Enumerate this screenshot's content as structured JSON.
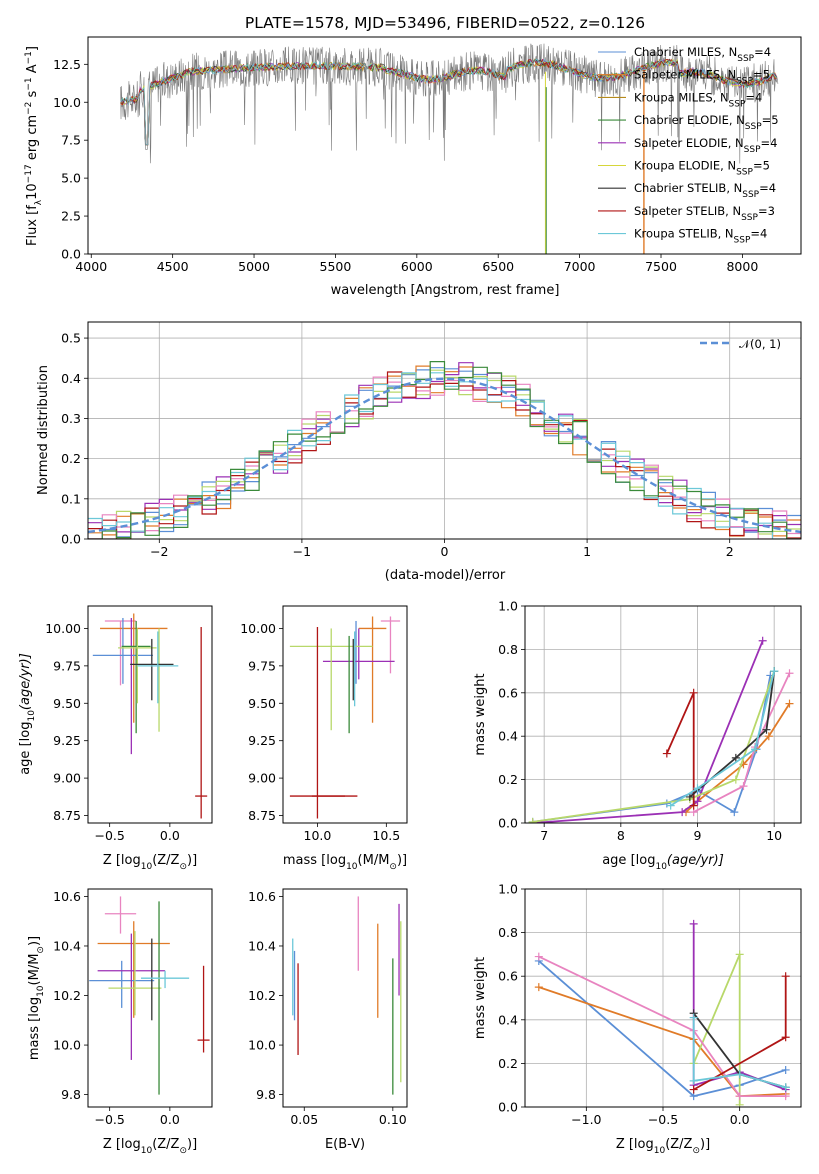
{
  "chart_data": [
    {
      "type": "line",
      "title": "PLATE=1578, MJD=53496, FIBERID=0522, z=0.126",
      "xlabel": "wavelength [Angstrom, rest frame]",
      "ylabel": "Flux [f",
      "ylabel_sub": "λ",
      "ylabel_mid": "10",
      "ylabel_sup": "−17",
      "ylabel_end": " erg cm",
      "ylabel_sup2": "−2",
      "ylabel_s": " s",
      "ylabel_sup3": "−1",
      "ylabel_A": " A",
      "ylabel_sup4": "−1",
      "ylabel_close": "]",
      "xlim": [
        3980,
        8360
      ],
      "ylim": [
        0,
        14.3
      ],
      "xticks": [
        4000,
        4500,
        5000,
        5500,
        6000,
        6500,
        7000,
        7500,
        8000
      ],
      "yticks": [
        0.0,
        2.5,
        5.0,
        7.5,
        10.0,
        12.5
      ],
      "ytick_labels": [
        "0.0",
        "2.5",
        "5.0",
        "7.5",
        "10.0",
        "12.5"
      ],
      "legend_position": "right",
      "series": [
        {
          "name": "Chabrier MILES, N",
          "sub": "SSP",
          "tail": "=4",
          "color": "#5b8fd6"
        },
        {
          "name": "Salpeter MILES, N",
          "sub": "SSP",
          "tail": "=5",
          "color": "#e07b28"
        },
        {
          "name": "Kroupa MILES, N",
          "sub": "SSP",
          "tail": "=4",
          "color": "#b58a1c"
        },
        {
          "name": "Chabrier ELODIE, N",
          "sub": "SSP",
          "tail": "=5",
          "color": "#3a8a3a"
        },
        {
          "name": "Salpeter ELODIE, N",
          "sub": "SSP",
          "tail": "=4",
          "color": "#9b30b5"
        },
        {
          "name": "Kroupa ELODIE, N",
          "sub": "SSP",
          "tail": "=5",
          "color": "#d6d63a"
        },
        {
          "name": "Chabrier STELIB, N",
          "sub": "SSP",
          "tail": "=4",
          "color": "#333333"
        },
        {
          "name": "Salpeter STELIB, N",
          "sub": "SSP",
          "tail": "=3",
          "color": "#b01515"
        },
        {
          "name": "Kroupa STELIB, N",
          "sub": "SSP",
          "tail": "=4",
          "color": "#6cc8d8"
        }
      ],
      "x_range_data": [
        4180,
        8220
      ]
    },
    {
      "type": "line",
      "xlabel": "(data-model)/error",
      "ylabel": "Normed distribution",
      "xlim": [
        -2.5,
        2.5
      ],
      "ylim": [
        0,
        0.54
      ],
      "xticks": [
        -2,
        -1,
        0,
        1,
        2
      ],
      "xtick_labels": [
        "−2",
        "−1",
        "0",
        "1",
        "2"
      ],
      "yticks": [
        0.0,
        0.1,
        0.2,
        0.3,
        0.4,
        0.5
      ],
      "ytick_labels": [
        "0.0",
        "0.1",
        "0.2",
        "0.3",
        "0.4",
        "0.5"
      ],
      "grid": true,
      "legend_position": "top-right",
      "legend": "𝒩(0, 1)",
      "gauss_color": "#5b8fd6",
      "bin_width": 0.1,
      "hist_colors": [
        "#5b8fd6",
        "#e07b28",
        "#9b30b5",
        "#b8d86a",
        "#e884c0",
        "#b01515",
        "#6cc8d8",
        "#3a8a3a"
      ]
    },
    {
      "type": "scatter",
      "xlabel": "Z [log",
      "xlabel_sub": "10",
      "xlabel_mid": "(Z/Z",
      "xlabel_sun_sub": "⊙",
      "xlabel_end": ")]",
      "ylabel": "age  [log",
      "ylabel_sub": "10",
      "ylabel_end": "(age/yr)]",
      "xlim": [
        -0.68,
        0.35
      ],
      "ylim": [
        8.7,
        10.15
      ],
      "xticks": [
        -0.5,
        0.0
      ],
      "xtick_labels": [
        "−0.5",
        "0.0"
      ],
      "yticks": [
        8.75,
        9.0,
        9.25,
        9.5,
        9.75,
        10.0
      ],
      "ytick_labels": [
        "8.75",
        "9.00",
        "9.25",
        "9.50",
        "9.75",
        "10.00"
      ],
      "points": [
        {
          "x": -0.41,
          "y": 10.05,
          "dx": 0.13,
          "dy": 0.0,
          "ylo": 9.62,
          "yhi": 10.05,
          "color": "#e884c0"
        },
        {
          "x": -0.3,
          "y": 10.0,
          "dx": 0.28,
          "dy": 0.0,
          "ylo": 9.37,
          "yhi": 10.1,
          "color": "#e07b28"
        },
        {
          "x": -0.39,
          "y": 9.82,
          "dx": 0.25,
          "dy": 0.0,
          "ylo": 9.63,
          "yhi": 10.07,
          "color": "#5b8fd6"
        },
        {
          "x": -0.32,
          "y": 9.79,
          "dx": 0.0,
          "dy": 0.0,
          "ylo": 9.16,
          "yhi": 10.07,
          "color": "#9b30b5"
        },
        {
          "x": -0.28,
          "y": 9.88,
          "dx": 0.12,
          "dy": 0.0,
          "ylo": 9.3,
          "yhi": 10.05,
          "color": "#3a8a3a"
        },
        {
          "x": -0.27,
          "y": 9.87,
          "dx": 0.16,
          "dy": 0.0,
          "ylo": 9.5,
          "yhi": 10.0,
          "color": "#b8d86a"
        },
        {
          "x": -0.09,
          "y": 9.87,
          "dx": 0.0,
          "dy": 0.0,
          "ylo": 9.31,
          "yhi": 10.0,
          "color": "#b8d86a"
        },
        {
          "x": -0.15,
          "y": 9.76,
          "dx": 0.18,
          "dy": 0.0,
          "ylo": 9.52,
          "yhi": 9.93,
          "color": "#333333"
        },
        {
          "x": -0.1,
          "y": 9.75,
          "dx": 0.17,
          "dy": 0.0,
          "ylo": 9.5,
          "yhi": 9.98,
          "color": "#6cc8d8"
        },
        {
          "x": 0.26,
          "y": 8.88,
          "dx": 0.05,
          "dy": 0.0,
          "ylo": 8.73,
          "yhi": 10.01,
          "color": "#b01515"
        }
      ]
    },
    {
      "type": "scatter",
      "xlabel": "mass [log",
      "xlabel_sub": "10",
      "xlabel_mid": "(M/M",
      "xlabel_sun_sub": "⊙",
      "xlabel_end": ")]",
      "xlim": [
        9.75,
        10.65
      ],
      "ylim": [
        8.7,
        10.15
      ],
      "xticks": [
        10.0,
        10.5
      ],
      "xtick_labels": [
        "10.0",
        "10.5"
      ],
      "yticks": [
        8.75,
        9.0,
        9.25,
        9.5,
        9.75,
        10.0
      ],
      "ytick_labels": [
        "8.75",
        "9.00",
        "9.25",
        "9.50",
        "9.75",
        "10.00"
      ],
      "points": [
        {
          "x": 10.53,
          "y": 10.05,
          "dx": 0.07,
          "ylo": 9.7,
          "yhi": 10.08,
          "color": "#e884c0"
        },
        {
          "x": 10.4,
          "y": 10.0,
          "dx": 0.1,
          "ylo": 9.37,
          "yhi": 10.08,
          "color": "#e07b28"
        },
        {
          "x": 10.28,
          "y": 9.82,
          "dx": 0.0,
          "ylo": 9.63,
          "yhi": 10.05,
          "color": "#5b8fd6"
        },
        {
          "x": 10.3,
          "y": 9.78,
          "dx": 0.26,
          "ylo": 9.66,
          "yhi": 10.0,
          "color": "#9b30b5"
        },
        {
          "x": 10.1,
          "y": 9.88,
          "dx": 0.3,
          "ylo": 9.32,
          "yhi": 10.0,
          "color": "#b8d86a"
        },
        {
          "x": 10.23,
          "y": 9.87,
          "dx": 0.0,
          "ylo": 9.3,
          "yhi": 9.95,
          "color": "#3a8a3a"
        },
        {
          "x": 10.26,
          "y": 9.76,
          "dx": 0.0,
          "ylo": 9.52,
          "yhi": 9.93,
          "color": "#333333"
        },
        {
          "x": 10.27,
          "y": 9.75,
          "dx": 0.0,
          "ylo": 9.48,
          "yhi": 9.98,
          "color": "#6cc8d8"
        },
        {
          "x": 10.0,
          "y": 8.88,
          "dx": 0.2,
          "ylo": 8.73,
          "yhi": 10.01,
          "color": "#b01515",
          "x_lo": 9.96,
          "x_hi": 10.29
        }
      ]
    },
    {
      "type": "line",
      "xlabel": "age  [log",
      "xlabel_sub": "10",
      "xlabel_end": "(age/yr)]",
      "ylabel": "mass weight",
      "xlim": [
        6.75,
        10.35
      ],
      "ylim": [
        0,
        1.0
      ],
      "xticks": [
        7,
        8,
        9,
        10
      ],
      "xtick_labels": [
        "7",
        "8",
        "9",
        "10"
      ],
      "yticks": [
        0.0,
        0.2,
        0.4,
        0.6,
        0.8,
        1.0
      ],
      "ytick_labels": [
        "0.0",
        "0.2",
        "0.4",
        "0.6",
        "0.8",
        "1.0"
      ],
      "grid": true,
      "series": [
        {
          "color": "#5b8fd6",
          "points": [
            [
              6.85,
              0.005
            ],
            [
              8.6,
              0.09
            ],
            [
              9.0,
              0.15
            ],
            [
              9.48,
              0.05
            ],
            [
              9.77,
              0.34
            ],
            [
              9.95,
              0.68
            ]
          ]
        },
        {
          "color": "#e07b28",
          "points": [
            [
              8.85,
              0.05
            ],
            [
              9.0,
              0.1
            ],
            [
              9.6,
              0.27
            ],
            [
              9.93,
              0.4
            ],
            [
              10.2,
              0.55
            ]
          ]
        },
        {
          "color": "#9b30b5",
          "points": [
            [
              6.85,
              0.0
            ],
            [
              8.8,
              0.05
            ],
            [
              9.0,
              0.1
            ],
            [
              9.85,
              0.84
            ]
          ]
        },
        {
          "color": "#b8d86a",
          "points": [
            [
              6.85,
              0.005
            ],
            [
              8.9,
              0.11
            ],
            [
              9.5,
              0.2
            ],
            [
              10.0,
              0.7
            ]
          ]
        },
        {
          "color": "#e884c0",
          "points": [
            [
              8.95,
              0.05
            ],
            [
              9.6,
              0.17
            ],
            [
              9.75,
              0.35
            ],
            [
              10.2,
              0.69
            ]
          ]
        },
        {
          "color": "#b01515",
          "points": [
            [
              8.6,
              0.32
            ],
            [
              8.95,
              0.6
            ],
            [
              8.95,
              0.08
            ]
          ]
        },
        {
          "color": "#333333",
          "points": [
            [
              8.9,
              0.12
            ],
            [
              9.5,
              0.3
            ],
            [
              9.9,
              0.43
            ],
            [
              10.0,
              0.7
            ]
          ]
        },
        {
          "color": "#6cc8d8",
          "points": [
            [
              8.65,
              0.08
            ],
            [
              9.0,
              0.16
            ],
            [
              9.75,
              0.34
            ],
            [
              10.0,
              0.7
            ]
          ]
        }
      ]
    },
    {
      "type": "scatter",
      "xlabel": "Z [log",
      "xlabel_sub": "10",
      "xlabel_mid": "(Z/Z",
      "xlabel_sun_sub": "⊙",
      "xlabel_end": ")]",
      "ylabel": "mass [log",
      "ylabel_sub": "10",
      "ylabel_mid": "(M/M",
      "ylabel_sun_sub": "⊙",
      "ylabel_end": ")]",
      "xlim": [
        -0.68,
        0.35
      ],
      "ylim": [
        9.75,
        10.63
      ],
      "xticks": [
        -0.5,
        0.0
      ],
      "xtick_labels": [
        "−0.5",
        "0.0"
      ],
      "yticks": [
        9.8,
        10.0,
        10.2,
        10.4,
        10.6
      ],
      "ytick_labels": [
        "9.8",
        "10.0",
        "10.2",
        "10.4",
        "10.6"
      ],
      "points": [
        {
          "x": -0.41,
          "y": 10.53,
          "dx": 0.13,
          "ylo": 10.45,
          "yhi": 10.6,
          "color": "#e884c0"
        },
        {
          "x": -0.3,
          "y": 10.41,
          "dx": 0.3,
          "ylo": 10.11,
          "yhi": 10.5,
          "color": "#e07b28"
        },
        {
          "x": -0.4,
          "y": 10.26,
          "dx": 0.27,
          "ylo": 10.15,
          "yhi": 10.34,
          "color": "#5b8fd6"
        },
        {
          "x": -0.32,
          "y": 10.3,
          "dx": 0.28,
          "ylo": 9.94,
          "yhi": 10.45,
          "color": "#9b30b5"
        },
        {
          "x": -0.29,
          "y": 10.23,
          "dx": 0.22,
          "ylo": 10.12,
          "yhi": 10.46,
          "color": "#b8d86a"
        },
        {
          "x": -0.09,
          "y": 10.23,
          "dx": 0.0,
          "ylo": 9.8,
          "yhi": 10.58,
          "color": "#3a8a3a"
        },
        {
          "x": -0.15,
          "y": 10.27,
          "dx": 0.0,
          "ylo": 10.1,
          "yhi": 10.43,
          "color": "#333333"
        },
        {
          "x": -0.04,
          "y": 10.27,
          "dx": 0.2,
          "ylo": 10.23,
          "yhi": 10.3,
          "color": "#6cc8d8"
        },
        {
          "x": 0.28,
          "y": 10.02,
          "dx": 0.05,
          "ylo": 9.97,
          "yhi": 10.32,
          "color": "#b01515"
        }
      ]
    },
    {
      "type": "scatter",
      "xlabel": "E(B-V)",
      "xlim": [
        0.038,
        0.108
      ],
      "ylim": [
        9.75,
        10.63
      ],
      "xticks": [
        0.05,
        0.1
      ],
      "xtick_labels": [
        "0.05",
        "0.10"
      ],
      "yticks": [
        9.8,
        10.0,
        10.2,
        10.4,
        10.6
      ],
      "ytick_labels": [
        "9.8",
        "10.0",
        "10.2",
        "10.4",
        "10.6"
      ],
      "points": [
        {
          "x": 0.0435,
          "ylo": 10.12,
          "yhi": 10.43,
          "color": "#6cc8d8"
        },
        {
          "x": 0.0445,
          "ylo": 10.1,
          "yhi": 10.38,
          "color": "#5b8fd6"
        },
        {
          "x": 0.0465,
          "ylo": 9.96,
          "yhi": 10.33,
          "color": "#b01515"
        },
        {
          "x": 0.0805,
          "ylo": 10.3,
          "yhi": 10.6,
          "color": "#e884c0"
        },
        {
          "x": 0.0915,
          "ylo": 10.11,
          "yhi": 10.49,
          "color": "#e07b28"
        },
        {
          "x": 0.1,
          "ylo": 9.8,
          "yhi": 10.35,
          "color": "#3a8a3a"
        },
        {
          "x": 0.1035,
          "ylo": 10.2,
          "yhi": 10.57,
          "color": "#9b30b5"
        },
        {
          "x": 0.1045,
          "ylo": 9.85,
          "yhi": 10.5,
          "color": "#b8d86a"
        }
      ]
    },
    {
      "type": "line",
      "xlabel": "Z [log",
      "xlabel_sub": "10",
      "xlabel_mid": "(Z/Z",
      "xlabel_sun_sub": "⊙",
      "xlabel_end": ")]",
      "ylabel": "mass weight",
      "xlim": [
        -1.4,
        0.4
      ],
      "ylim": [
        0,
        1.0
      ],
      "xticks": [
        -1.0,
        -0.5,
        0.0
      ],
      "xtick_labels": [
        "−1.0",
        "−0.5",
        "0.0"
      ],
      "yticks": [
        0.0,
        0.2,
        0.4,
        0.6,
        0.8,
        1.0
      ],
      "ytick_labels": [
        "0.0",
        "0.2",
        "0.4",
        "0.6",
        "0.8",
        "1.0"
      ],
      "grid": true,
      "series": [
        {
          "color": "#5b8fd6",
          "points": [
            [
              -1.31,
              0.67
            ],
            [
              -0.3,
              0.05
            ],
            [
              0.0,
              0.1
            ],
            [
              0.3,
              0.17
            ]
          ]
        },
        {
          "color": "#e07b28",
          "points": [
            [
              -1.31,
              0.55
            ],
            [
              -0.3,
              0.31
            ],
            [
              0.0,
              0.05
            ],
            [
              0.3,
              0.06
            ]
          ]
        },
        {
          "color": "#9b30b5",
          "points": [
            [
              -0.3,
              0.84
            ],
            [
              -0.3,
              0.1
            ],
            [
              0.0,
              0.16
            ],
            [
              0.3,
              0.08
            ]
          ]
        },
        {
          "color": "#b8d86a",
          "points": [
            [
              -0.3,
              0.2
            ],
            [
              0.0,
              0.7
            ],
            [
              0.0,
              0.01
            ]
          ]
        },
        {
          "color": "#e884c0",
          "points": [
            [
              -1.31,
              0.69
            ],
            [
              -0.3,
              0.35
            ],
            [
              0.0,
              0.05
            ],
            [
              0.3,
              0.05
            ]
          ]
        },
        {
          "color": "#b01515",
          "points": [
            [
              -0.3,
              0.08
            ],
            [
              0.3,
              0.32
            ],
            [
              0.3,
              0.6
            ]
          ]
        },
        {
          "color": "#333333",
          "points": [
            [
              -0.3,
              0.43
            ],
            [
              0.0,
              0.15
            ],
            [
              0.3,
              0.09
            ]
          ]
        },
        {
          "color": "#6cc8d8",
          "points": [
            [
              -0.3,
              0.41
            ],
            [
              -0.3,
              0.12
            ],
            [
              0.0,
              0.15
            ],
            [
              0.3,
              0.09
            ]
          ]
        }
      ]
    }
  ]
}
